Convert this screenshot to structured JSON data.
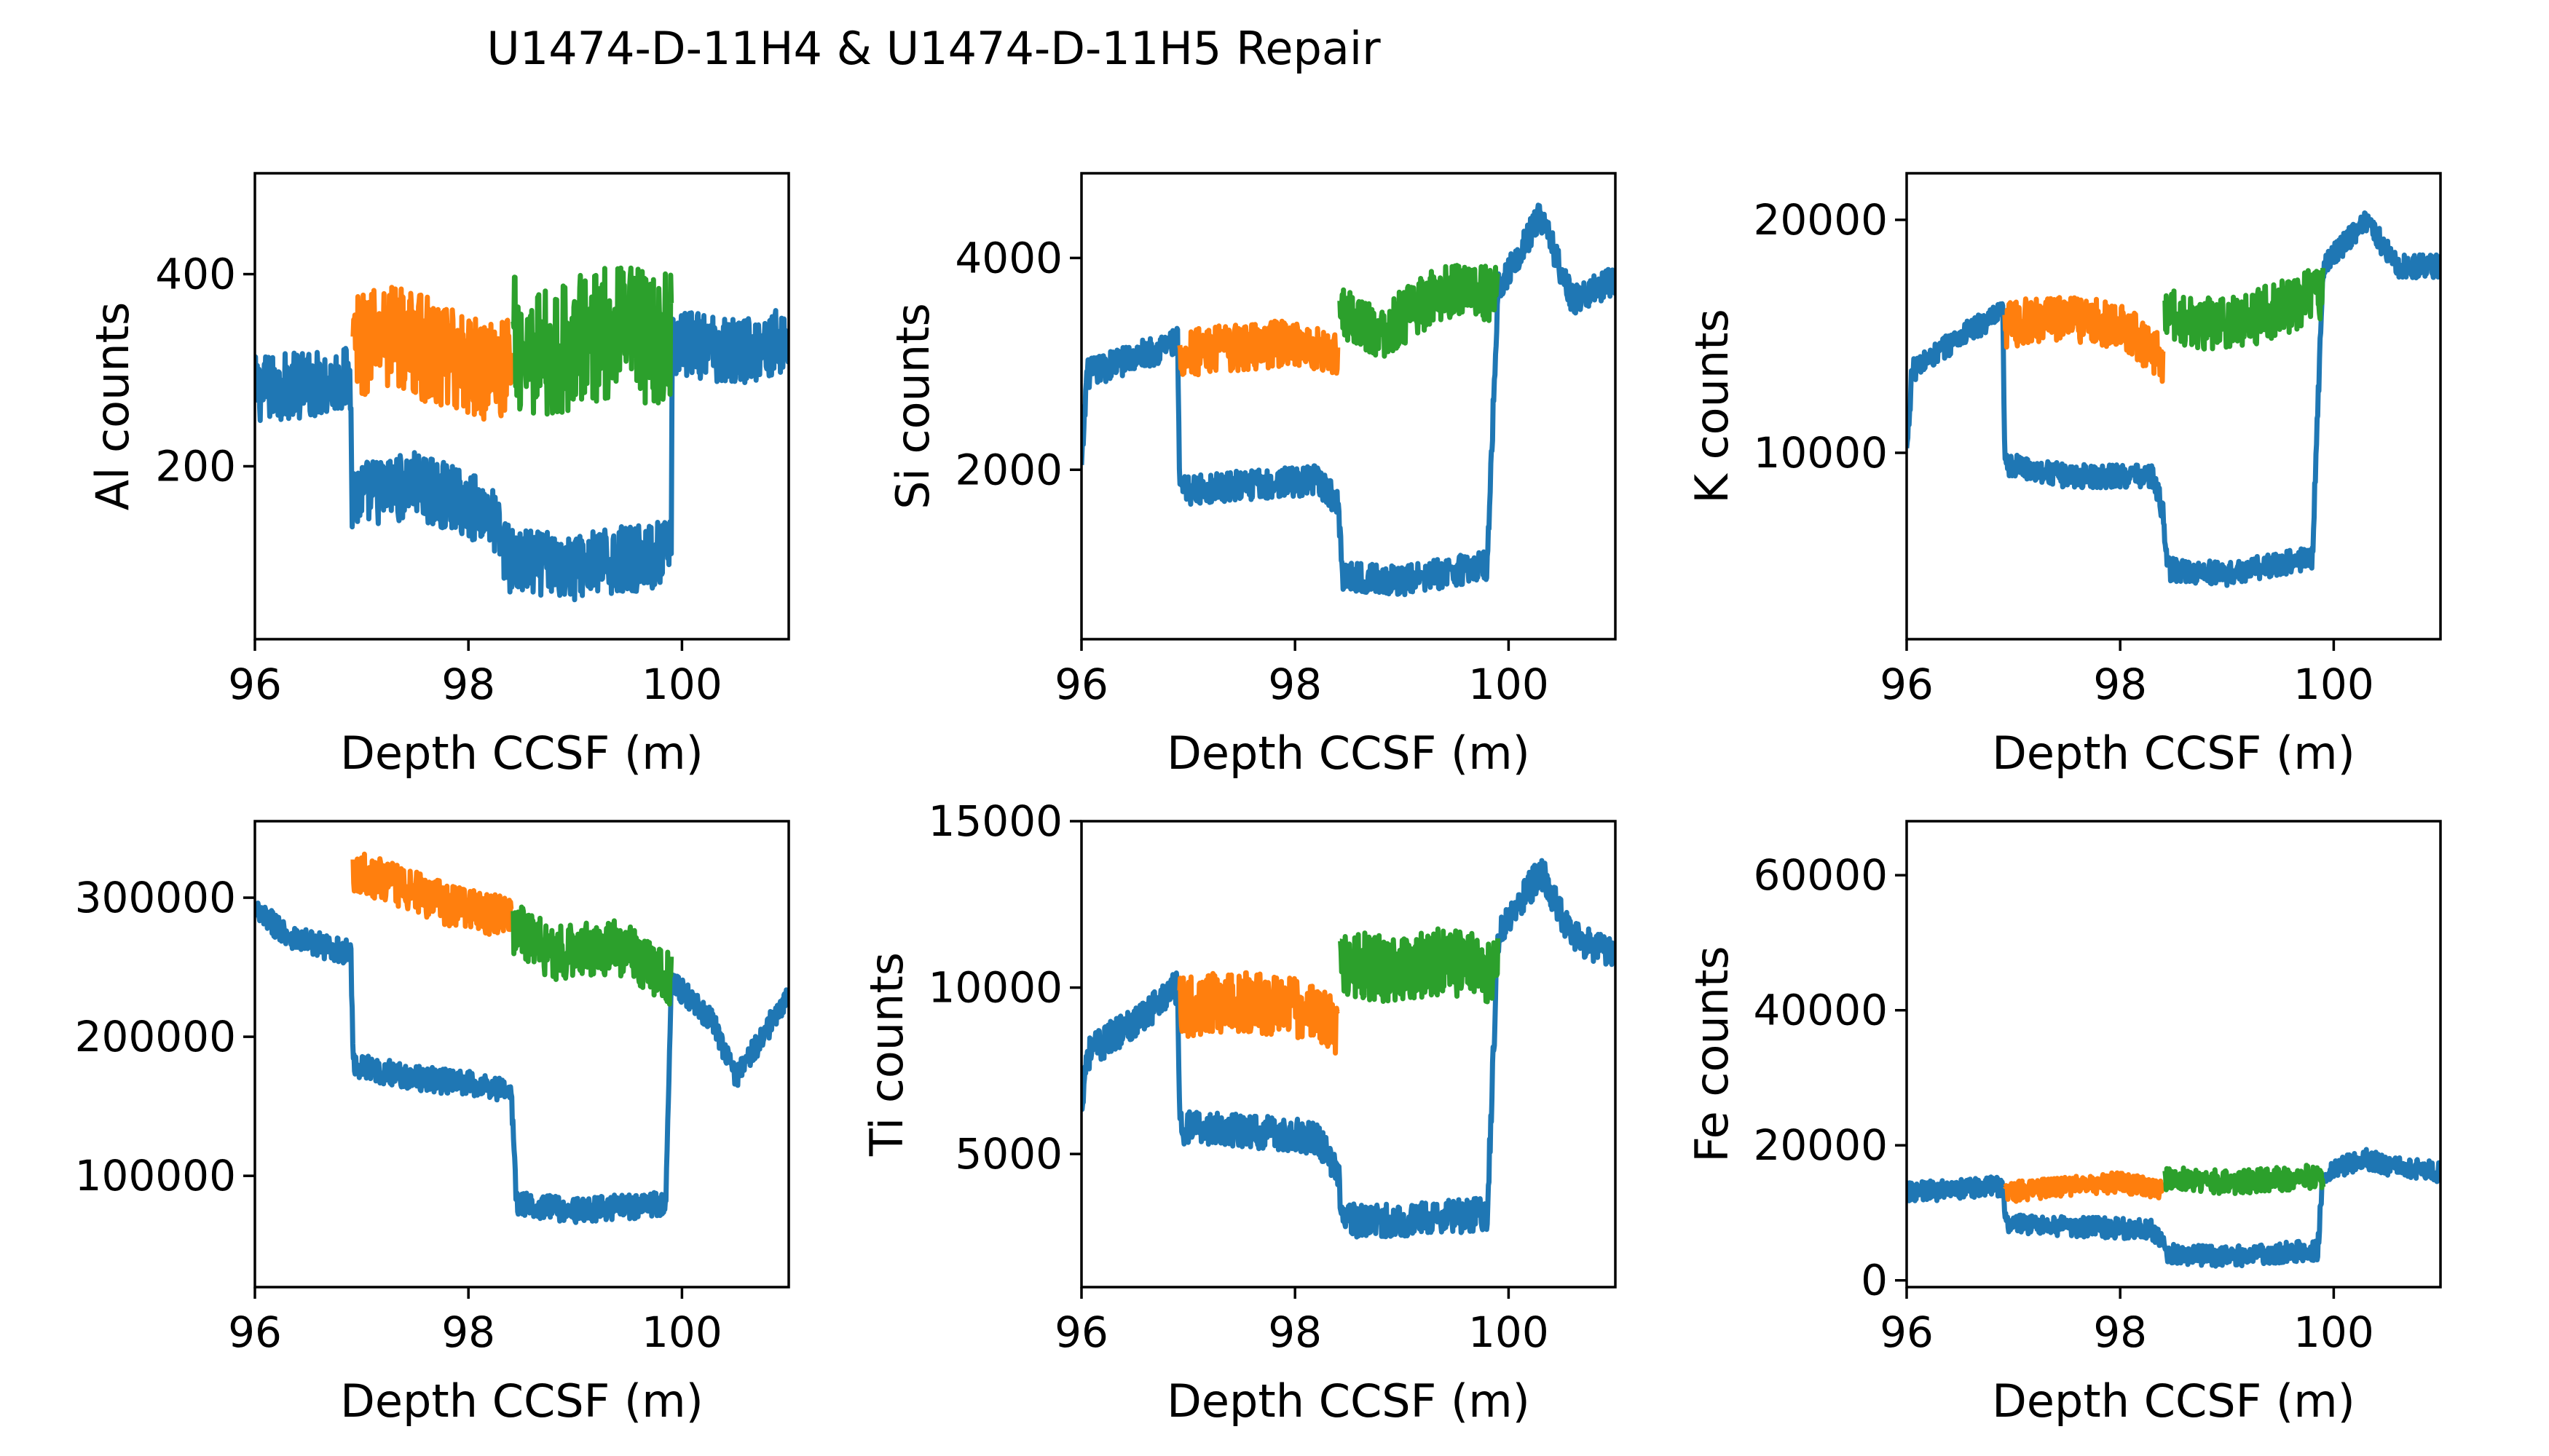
{
  "suptitle": "U1474-D-11H4 & U1474-D-11H5 Repair",
  "colors": {
    "base": "#1f77b4",
    "repair_h4": "#ff7f0e",
    "repair_h5": "#2ca02c"
  },
  "chart_data": [
    {
      "type": "line",
      "xlabel": "Depth CCSF (m)",
      "ylabel": "Al counts",
      "xlim": [
        96,
        101
      ],
      "ylim": [
        20,
        505
      ],
      "xticks": [
        96,
        98,
        100
      ],
      "yticks": [
        200,
        400
      ],
      "seg": [
        {
          "x": 96.0,
          "y": 280
        },
        {
          "x": 96.9,
          "y": 290
        },
        {
          "x": 96.91,
          "y": 170
        },
        {
          "x": 98.2,
          "y": 165
        },
        {
          "x": 98.4,
          "y": 100
        },
        {
          "x": 99.9,
          "y": 100
        },
        {
          "x": 99.91,
          "y": 330
        },
        {
          "x": 101.0,
          "y": 320
        }
      ],
      "series": [
        {
          "role": "base",
          "x": [
            96.0,
            96.9,
            96.91,
            97.5,
            98.0,
            98.2,
            98.4,
            99.0,
            99.9,
            99.91,
            100.5,
            101.0
          ],
          "y": [
            280,
            290,
            170,
            180,
            160,
            150,
            100,
            95,
            110,
            330,
            320,
            330
          ],
          "noise": 35
        },
        {
          "role": "repair_h4",
          "x": [
            96.92,
            97.3,
            97.8,
            98.3,
            98.4
          ],
          "y": [
            320,
            340,
            310,
            300,
            310
          ],
          "noise": 55
        },
        {
          "role": "repair_h5",
          "x": [
            98.42,
            98.8,
            99.3,
            99.9
          ],
          "y": [
            330,
            320,
            340,
            330
          ],
          "noise": 70
        }
      ]
    },
    {
      "type": "line",
      "xlabel": "Depth CCSF (m)",
      "ylabel": "Si counts",
      "xlim": [
        96,
        101
      ],
      "ylim": [
        400,
        4800
      ],
      "xticks": [
        96,
        98,
        100
      ],
      "yticks": [
        2000,
        4000
      ],
      "series": [
        {
          "role": "base",
          "x": [
            96.0,
            96.05,
            96.3,
            96.9,
            96.92,
            97.5,
            98.2,
            98.4,
            98.45,
            99.0,
            99.8,
            99.9,
            100.3,
            100.6,
            101.0
          ],
          "y": [
            2000,
            2900,
            3000,
            3200,
            1800,
            1850,
            1900,
            1700,
            1000,
            950,
            1100,
            3700,
            4400,
            3600,
            3800
          ],
          "noise": 140
        },
        {
          "role": "repair_h4",
          "x": [
            96.92,
            97.4,
            98.0,
            98.4
          ],
          "y": [
            3100,
            3150,
            3200,
            3100
          ],
          "noise": 220
        },
        {
          "role": "repair_h5",
          "x": [
            98.42,
            98.8,
            99.4,
            99.9
          ],
          "y": [
            3500,
            3300,
            3700,
            3650
          ],
          "noise": 260
        }
      ]
    },
    {
      "type": "line",
      "xlabel": "Depth CCSF (m)",
      "ylabel": "K counts",
      "xlim": [
        96,
        101
      ],
      "ylim": [
        2000,
        22000
      ],
      "xticks": [
        96,
        98,
        100
      ],
      "yticks": [
        10000,
        20000
      ],
      "series": [
        {
          "role": "base",
          "x": [
            96.0,
            96.05,
            96.5,
            96.9,
            96.92,
            97.5,
            98.3,
            98.4,
            98.45,
            99.0,
            99.8,
            99.9,
            100.3,
            100.6,
            101.0
          ],
          "y": [
            10000,
            13500,
            15000,
            16000,
            9500,
            9000,
            9000,
            7500,
            5000,
            4800,
            5500,
            18000,
            20000,
            18000,
            18000
          ],
          "noise": 500
        },
        {
          "role": "repair_h4",
          "x": [
            96.92,
            97.4,
            98.0,
            98.4
          ],
          "y": [
            15500,
            15800,
            15500,
            14000
          ],
          "noise": 1000
        },
        {
          "role": "repair_h5",
          "x": [
            98.42,
            98.9,
            99.4,
            99.9
          ],
          "y": [
            16000,
            15500,
            16000,
            17000
          ],
          "noise": 1200
        }
      ]
    },
    {
      "type": "line",
      "xlabel": "Depth CCSF (m)",
      "ylabel": "",
      "xlim": [
        96,
        101
      ],
      "ylim": [
        20000,
        355000
      ],
      "xticks": [
        96,
        98,
        100
      ],
      "yticks": [
        100000,
        200000,
        300000
      ],
      "series": [
        {
          "role": "base",
          "x": [
            96.0,
            96.4,
            96.9,
            96.92,
            97.5,
            98.2,
            98.4,
            98.45,
            99.0,
            99.85,
            99.9,
            100.3,
            100.5,
            101.0
          ],
          "y": [
            290000,
            270000,
            260000,
            180000,
            170000,
            165000,
            160000,
            80000,
            75000,
            80000,
            240000,
            210000,
            170000,
            230000
          ],
          "noise": 9000
        },
        {
          "role": "repair_h4",
          "x": [
            96.92,
            97.3,
            97.8,
            98.4
          ],
          "y": [
            320000,
            310000,
            295000,
            285000
          ],
          "noise": 15000
        },
        {
          "role": "repair_h5",
          "x": [
            98.42,
            98.8,
            99.4,
            99.9
          ],
          "y": [
            280000,
            260000,
            265000,
            240000
          ],
          "noise": 20000
        }
      ]
    },
    {
      "type": "line",
      "xlabel": "Depth CCSF (m)",
      "ylabel": "Ti counts",
      "xlim": [
        96,
        101
      ],
      "ylim": [
        1000,
        15000
      ],
      "xticks": [
        96,
        98,
        100
      ],
      "yticks": [
        5000,
        10000,
        15000
      ],
      "series": [
        {
          "role": "base",
          "x": [
            96.0,
            96.05,
            96.5,
            96.9,
            96.92,
            97.5,
            98.2,
            98.4,
            98.45,
            99.0,
            99.8,
            99.9,
            100.3,
            100.6,
            101.0
          ],
          "y": [
            6500,
            8000,
            9000,
            10000,
            5800,
            5700,
            5500,
            4500,
            3000,
            3000,
            3200,
            11500,
            13500,
            11500,
            11000
          ],
          "noise": 500
        },
        {
          "role": "repair_h4",
          "x": [
            96.92,
            97.4,
            98.0,
            98.4
          ],
          "y": [
            9400,
            9600,
            9400,
            8800
          ],
          "noise": 900
        },
        {
          "role": "repair_h5",
          "x": [
            98.42,
            98.9,
            99.4,
            99.9
          ],
          "y": [
            10800,
            10500,
            10800,
            10500
          ],
          "noise": 1000
        }
      ]
    },
    {
      "type": "line",
      "xlabel": "Depth CCSF (m)",
      "ylabel": "Fe counts",
      "xlim": [
        96,
        101
      ],
      "ylim": [
        -1000,
        68000
      ],
      "xticks": [
        96,
        98,
        100
      ],
      "yticks": [
        0,
        20000,
        40000,
        60000
      ],
      "series": [
        {
          "role": "base",
          "x": [
            96.0,
            96.9,
            96.92,
            97.5,
            98.3,
            98.45,
            99.0,
            99.85,
            99.9,
            100.3,
            100.5,
            101.0
          ],
          "y": [
            13000,
            14000,
            8500,
            8000,
            7500,
            4000,
            3500,
            4500,
            16000,
            18000,
            17000,
            16000
          ],
          "noise": 1500
        },
        {
          "role": "repair_h4",
          "x": [
            96.92,
            97.5,
            98.0,
            98.4
          ],
          "y": [
            13000,
            14000,
            14500,
            13500
          ],
          "noise": 1500
        },
        {
          "role": "repair_h5",
          "x": [
            98.42,
            99.0,
            99.5,
            99.9
          ],
          "y": [
            15000,
            14500,
            15000,
            15500
          ],
          "noise": 1800
        }
      ]
    }
  ]
}
